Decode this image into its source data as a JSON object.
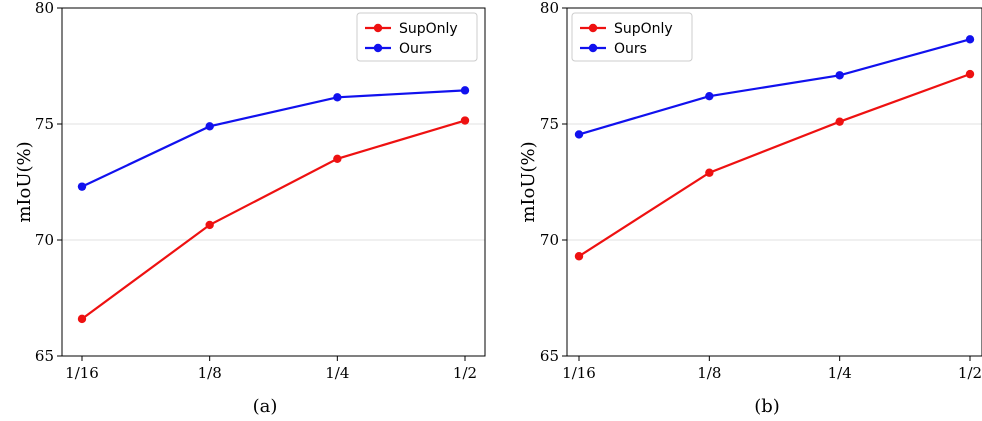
{
  "chart_data": [
    {
      "type": "line",
      "categories": [
        "1/16",
        "1/8",
        "1/4",
        "1/2"
      ],
      "series": [
        {
          "name": "SupOnly",
          "color": "#ee1111",
          "values": [
            66.6,
            70.65,
            73.5,
            75.15
          ]
        },
        {
          "name": "Ours",
          "color": "#1111ee",
          "values": [
            72.3,
            74.9,
            76.15,
            76.45
          ]
        }
      ],
      "ylabel": "mIoU(%)",
      "ylim": [
        65,
        80
      ],
      "yticks": [
        "65",
        "70",
        "75",
        "80"
      ],
      "grid": "horizontal",
      "legend": "top-right",
      "caption": "(a)"
    },
    {
      "type": "line",
      "categories": [
        "1/16",
        "1/8",
        "1/4",
        "1/2"
      ],
      "series": [
        {
          "name": "SupOnly",
          "color": "#ee1111",
          "values": [
            69.3,
            72.9,
            75.1,
            77.15
          ]
        },
        {
          "name": "Ours",
          "color": "#1111ee",
          "values": [
            74.55,
            76.2,
            77.1,
            78.65
          ]
        }
      ],
      "ylabel": "mIoU(%)",
      "ylim": [
        65,
        80
      ],
      "yticks": [
        "65",
        "70",
        "75",
        "80"
      ],
      "grid": "horizontal",
      "legend": "top-left",
      "caption": "(b)"
    }
  ]
}
